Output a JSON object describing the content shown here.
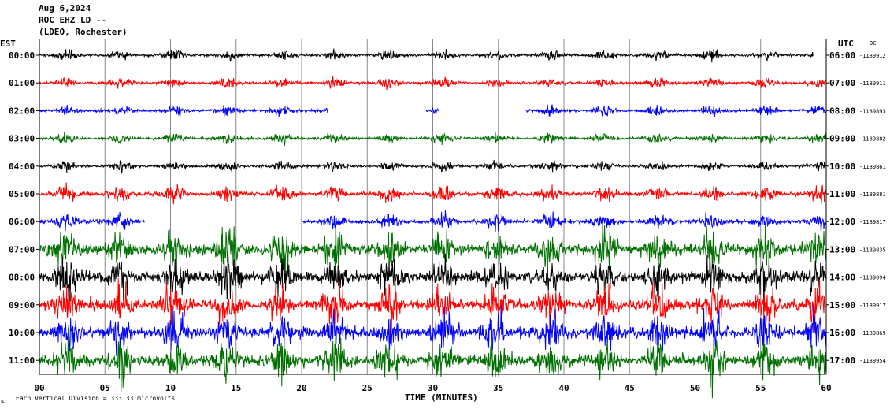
{
  "header": {
    "date": "Aug 6,2024",
    "station": "ROC EHZ LD --",
    "network": "(LDEO, Rochester)"
  },
  "chart_data": {
    "type": "line",
    "title": "Aug 6,2024",
    "subtitle": "ROC EHZ LD -- (LDEO, Rochester)",
    "xlabel": "TIME (MINUTES)",
    "left_axis_label": "EST",
    "right_axis_label": "UTC",
    "right_column_label": "DC",
    "xlim": [
      0,
      60
    ],
    "x_ticks": [
      "00",
      "05",
      "10",
      "15",
      "20",
      "25",
      "30",
      "35",
      "40",
      "45",
      "50",
      "55",
      "60"
    ],
    "scale_note": "Each Vertical Division = 333.33 microvolts",
    "corner_mark": "ᴊʟ",
    "grid": true,
    "color_cycle": [
      "#000000",
      "#ff0000",
      "#0000ff",
      "#007000"
    ],
    "series": [
      {
        "est": "00:00",
        "utc": "06:00",
        "dc": "-1189912",
        "color": "#000000",
        "start_minute": 0,
        "end_minute": 59,
        "activity": "low",
        "gaps": []
      },
      {
        "est": "01:00",
        "utc": "07:00",
        "dc": "-1189911",
        "color": "#ff0000",
        "start_minute": 0,
        "end_minute": 60,
        "activity": "low",
        "gaps": []
      },
      {
        "est": "02:00",
        "utc": "08:00",
        "dc": "-1189893",
        "color": "#0000ff",
        "start_minute": 0,
        "end_minute": 60,
        "activity": "low",
        "gaps": [
          [
            22,
            29.5
          ],
          [
            30.5,
            37
          ]
        ]
      },
      {
        "est": "03:00",
        "utc": "09:00",
        "dc": "-1189882",
        "color": "#007000",
        "start_minute": 0,
        "end_minute": 60,
        "activity": "low",
        "gaps": []
      },
      {
        "est": "04:00",
        "utc": "10:00",
        "dc": "-1189861",
        "color": "#000000",
        "start_minute": 0,
        "end_minute": 60,
        "activity": "low",
        "gaps": []
      },
      {
        "est": "05:00",
        "utc": "11:00",
        "dc": "-1189881",
        "color": "#ff0000",
        "start_minute": 0,
        "end_minute": 60,
        "activity": "moderate",
        "gaps": []
      },
      {
        "est": "06:00",
        "utc": "12:00",
        "dc": "-1189817",
        "color": "#0000ff",
        "start_minute": 0,
        "end_minute": 60,
        "activity": "moderate",
        "gaps": [
          [
            8,
            20
          ]
        ]
      },
      {
        "est": "07:00",
        "utc": "13:00",
        "dc": "-1189835",
        "color": "#007000",
        "start_minute": 0,
        "end_minute": 60,
        "activity": "high",
        "gaps": []
      },
      {
        "est": "08:00",
        "utc": "14:00",
        "dc": "-1189094",
        "color": "#000000",
        "start_minute": 0,
        "end_minute": 60,
        "activity": "high",
        "gaps": []
      },
      {
        "est": "09:00",
        "utc": "15:00",
        "dc": "-1189917",
        "color": "#ff0000",
        "start_minute": 0,
        "end_minute": 60,
        "activity": "high",
        "gaps": []
      },
      {
        "est": "10:00",
        "utc": "16:00",
        "dc": "-1189869",
        "color": "#0000ff",
        "start_minute": 0,
        "end_minute": 60,
        "activity": "high",
        "gaps": []
      },
      {
        "est": "11:00",
        "utc": "17:00",
        "dc": "-1189954",
        "color": "#007000",
        "start_minute": 0,
        "end_minute": 60,
        "activity": "high",
        "gaps": []
      }
    ]
  }
}
